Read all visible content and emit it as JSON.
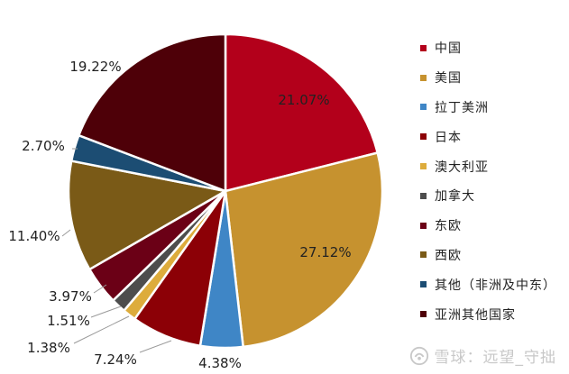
{
  "chart_data": {
    "type": "pie",
    "categories": [
      "中国",
      "美国",
      "拉丁美洲",
      "日本",
      "澳大利亚",
      "加拿大",
      "东欧",
      "西欧",
      "其他（非洲及中东）",
      "亚洲其他国家"
    ],
    "values": [
      21.07,
      27.12,
      4.38,
      7.24,
      1.38,
      1.51,
      3.97,
      11.4,
      2.7,
      19.22
    ],
    "labels": [
      "21.07%",
      "27.12%",
      "4.38%",
      "7.24%",
      "1.38%",
      "1.51%",
      "3.97%",
      "11.40%",
      "2.70%",
      "19.22%"
    ],
    "colors": [
      "#b3001b",
      "#c6922f",
      "#3f86c6",
      "#8c0006",
      "#ddac3c",
      "#4d4d4d",
      "#6b0016",
      "#7a5a17",
      "#1c4d73",
      "#4e0008"
    ],
    "legend_position": "right",
    "title": ""
  },
  "watermark": {
    "text": "雪球：远望_守拙"
  }
}
